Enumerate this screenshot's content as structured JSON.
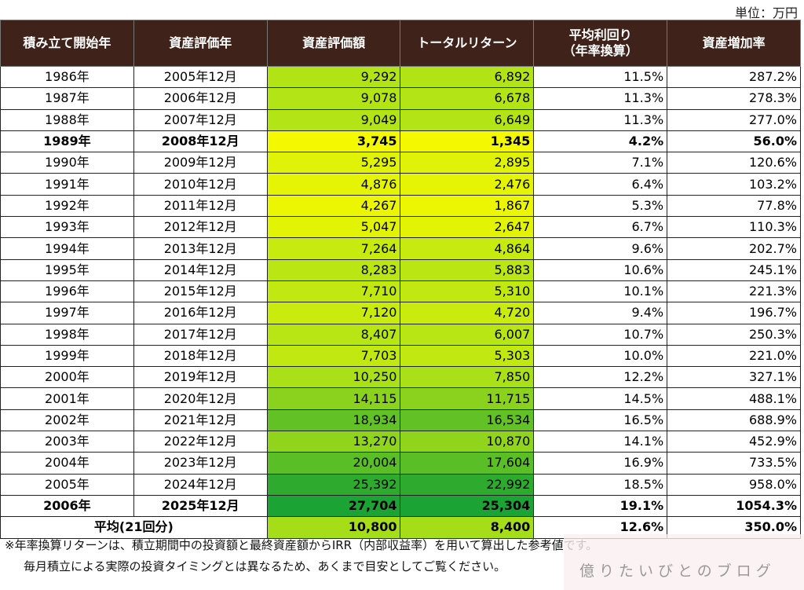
{
  "unit_label": "単位：万円",
  "chart_data": {
    "type": "table",
    "columns": [
      "積み立て開始年",
      "資産評価年",
      "資産評価額",
      "トータルリターン",
      "平均利回り\n（年率換算）",
      "資産増加率"
    ],
    "rows": [
      [
        "1986年",
        "2005年12月",
        "9,292",
        "6,892",
        "11.5%",
        "287.2%"
      ],
      [
        "1987年",
        "2006年12月",
        "9,078",
        "6,678",
        "11.3%",
        "278.3%"
      ],
      [
        "1988年",
        "2007年12月",
        "9,049",
        "6,649",
        "11.3%",
        "277.0%"
      ],
      [
        "1989年",
        "2008年12月",
        "3,745",
        "1,345",
        "4.2%",
        "56.0%"
      ],
      [
        "1990年",
        "2009年12月",
        "5,295",
        "2,895",
        "7.1%",
        "120.6%"
      ],
      [
        "1991年",
        "2010年12月",
        "4,876",
        "2,476",
        "6.4%",
        "103.2%"
      ],
      [
        "1992年",
        "2011年12月",
        "4,267",
        "1,867",
        "5.3%",
        "77.8%"
      ],
      [
        "1993年",
        "2012年12月",
        "5,047",
        "2,647",
        "6.7%",
        "110.3%"
      ],
      [
        "1994年",
        "2013年12月",
        "7,264",
        "4,864",
        "9.6%",
        "202.7%"
      ],
      [
        "1995年",
        "2014年12月",
        "8,283",
        "5,883",
        "10.6%",
        "245.1%"
      ],
      [
        "1996年",
        "2015年12月",
        "7,710",
        "5,310",
        "10.1%",
        "221.3%"
      ],
      [
        "1997年",
        "2016年12月",
        "7,120",
        "4,720",
        "9.4%",
        "196.7%"
      ],
      [
        "1998年",
        "2017年12月",
        "8,407",
        "6,007",
        "10.7%",
        "250.3%"
      ],
      [
        "1999年",
        "2018年12月",
        "7,703",
        "5,303",
        "10.0%",
        "221.0%"
      ],
      [
        "2000年",
        "2019年12月",
        "10,250",
        "7,850",
        "12.2%",
        "327.1%"
      ],
      [
        "2001年",
        "2020年12月",
        "14,115",
        "11,715",
        "14.5%",
        "488.1%"
      ],
      [
        "2002年",
        "2021年12月",
        "18,934",
        "16,534",
        "16.5%",
        "688.9%"
      ],
      [
        "2003年",
        "2022年12月",
        "13,270",
        "10,870",
        "14.1%",
        "452.9%"
      ],
      [
        "2004年",
        "2023年12月",
        "20,004",
        "17,604",
        "16.9%",
        "733.5%"
      ],
      [
        "2005年",
        "2024年12月",
        "25,392",
        "22,992",
        "18.5%",
        "958.0%"
      ],
      [
        "2006年",
        "2025年12月",
        "27,704",
        "25,304",
        "19.1%",
        "1054.3%"
      ]
    ],
    "bold_rows": [
      3,
      20
    ],
    "average": {
      "label": "平均(21回分)",
      "values": [
        "10,800",
        "8,400",
        "12.6%",
        "350.0%"
      ]
    },
    "color_scale": {
      "min": "#f4f800",
      "mid": "#b8e614",
      "max": "#1ba333"
    }
  },
  "footnotes": [
    "※年率換算リターンは、積立期間中の投資額と最終資産額からIRR（内部収益率）を用いて算出した参考値です。",
    "毎月積立による実際の投資タイミングとは異なるため、あくまで目安としてご覧ください。"
  ],
  "watermark": "億りたいびとのブログ"
}
